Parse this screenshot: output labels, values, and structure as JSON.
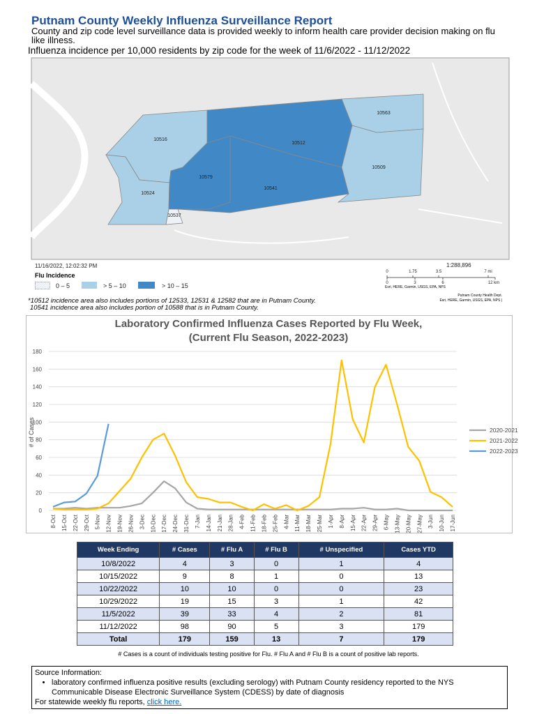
{
  "header": {
    "title": "Putnam County Weekly Influenza Surveillance Report",
    "subtitle": "County and zip code level surveillance data is provided weekly to inform health care provider decision making on flu like illness."
  },
  "map": {
    "title": "Influenza incidence per 10,000 residents by zip code for the week of 11/6/2022 - 11/12/2022",
    "zip_labels": [
      "10516",
      "10512",
      "10563",
      "10579",
      "10509",
      "10541",
      "10524",
      "10537"
    ],
    "timestamp": "11/16/2022, 12:02:32 PM",
    "legend_title": "Flu Incidence",
    "legend": [
      "0 – 5",
      "> 5 – 10",
      "> 10 – 15"
    ],
    "scale": "1:288,896",
    "scale_mi": [
      "0",
      "1.75",
      "3.5",
      "7 mi"
    ],
    "scale_km": [
      "0",
      "3",
      "6",
      "12 km"
    ],
    "credits": "Esri, HERE, Garmin, USGS, EPA, NPS",
    "credits_right": [
      "Putnam County Health Dept.",
      "Esri, HERE, Garmin, USGS, EPA, NPS |"
    ],
    "notes": [
      "*10512 incidence area also includes portions of 12533, 12531 & 12582 that are in Putnam County.",
      "10541 incidence area also includes portion of 10588 that is in Putnam County."
    ]
  },
  "chart_data": {
    "type": "line",
    "title": "Laboratory Confirmed Influenza Cases Reported by Flu Week,",
    "subtitle": "(Current Flu Season, 2022-2023)",
    "y_label": "# of Cases",
    "x": [
      "8-Oct",
      "15-Oct",
      "22-Oct",
      "29-Oct",
      "5-Nov",
      "12-Nov",
      "19-Nov",
      "26-Nov",
      "3-Dec",
      "10-Dec",
      "17-Dec",
      "24-Dec",
      "31-Dec",
      "7-Jan",
      "14-Jan",
      "21-Jan",
      "28-Jan",
      "4-Feb",
      "11-Feb",
      "18-Feb",
      "25-Feb",
      "4-Mar",
      "11-Mar",
      "18-Mar",
      "25-Mar",
      "1-Apr",
      "8-Apr",
      "15-Apr",
      "22-Apr",
      "29-Apr",
      "6-May",
      "13-May",
      "20-May",
      "27-May",
      "3-Jun",
      "10-Jun",
      "17-Jun"
    ],
    "series": [
      {
        "name": "2020-2021",
        "color": "#a5a5a5",
        "values": [
          2,
          2,
          3,
          2,
          3,
          3,
          3,
          5,
          8,
          20,
          33,
          25,
          9,
          2,
          1,
          1,
          1,
          1,
          1,
          1,
          1,
          1,
          1,
          1,
          1,
          1,
          2,
          2,
          3,
          1,
          1,
          2,
          0,
          0,
          0,
          0,
          0
        ]
      },
      {
        "name": "2021-2022",
        "color": "#ffc000",
        "values": [
          2,
          1,
          1,
          1,
          2,
          8,
          22,
          36,
          60,
          80,
          87,
          62,
          32,
          15,
          13,
          9,
          9,
          4,
          0,
          7,
          2,
          6,
          0,
          5,
          15,
          75,
          170,
          103,
          77,
          140,
          165,
          120,
          72,
          56,
          21,
          15,
          4
        ]
      },
      {
        "name": "2022-2023",
        "color": "#5b9bd5",
        "values": [
          4,
          9,
          10,
          19,
          39,
          98,
          null,
          null,
          null,
          null,
          null,
          null,
          null,
          null,
          null,
          null,
          null,
          null,
          null,
          null,
          null,
          null,
          null,
          null,
          null,
          null,
          null,
          null,
          null,
          null,
          null,
          null,
          null,
          null,
          null,
          null,
          null
        ]
      }
    ],
    "ylim": [
      0,
      180
    ],
    "yticks": [
      0,
      20,
      40,
      60,
      80,
      100,
      120,
      140,
      160,
      180
    ],
    "grid": true,
    "legend": "right"
  },
  "table": {
    "columns": [
      "Week Ending",
      "# Cases",
      "# Flu A",
      "# Flu B",
      "# Unspecified",
      "Cases YTD"
    ],
    "rows": [
      [
        "10/8/2022",
        4,
        3,
        0,
        1,
        4
      ],
      [
        "10/15/2022",
        9,
        8,
        1,
        0,
        13
      ],
      [
        "10/22/2022",
        10,
        10,
        0,
        0,
        23
      ],
      [
        "10/29/2022",
        19,
        15,
        3,
        1,
        42
      ],
      [
        "11/5/2022",
        39,
        33,
        4,
        2,
        81
      ],
      [
        "11/12/2022",
        98,
        90,
        5,
        3,
        179
      ],
      [
        "Total",
        179,
        159,
        13,
        7,
        179
      ]
    ]
  },
  "footnote": "# Cases is a count of individuals testing positive for Flu. # Flu A and # Flu B is a count of positive lab reports.",
  "source": {
    "heading": "Source Information:",
    "bullet": "laboratory confirmed influenza positive results (excluding serology) with Putnam County residency reported to the NYS Communicable Disease Electronic Surveillance System (CDESS) by date of diagnosis",
    "link_text": "For statewide weekly flu reports, ",
    "link": "click here."
  }
}
